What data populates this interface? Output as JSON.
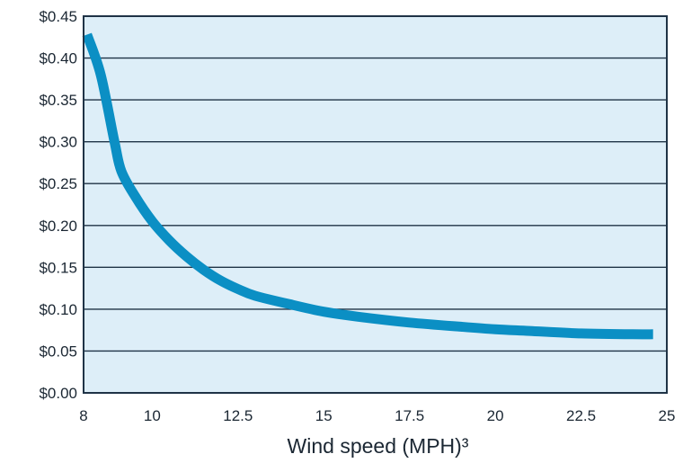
{
  "chart_data": {
    "type": "line",
    "title": "",
    "xlabel": "Wind speed (MPH)³",
    "ylabel": "",
    "xlim": [
      8,
      25
    ],
    "ylim": [
      0,
      0.45
    ],
    "x_ticks": [
      8,
      10,
      12.5,
      15,
      17.5,
      20,
      22.5,
      25
    ],
    "x_tick_labels": [
      "8",
      "10",
      "12.5",
      "15",
      "17.5",
      "20",
      "22.5",
      "25"
    ],
    "y_ticks": [
      0,
      0.05,
      0.1,
      0.15,
      0.2,
      0.25,
      0.3,
      0.35,
      0.4,
      0.45
    ],
    "y_tick_labels": [
      "$0.00",
      "$0.05",
      "$0.10",
      "$0.15",
      "$0.20",
      "$0.25",
      "$0.30",
      "$0.35",
      "$0.40",
      "$0.45"
    ],
    "grid": "horizontal",
    "legend": "none",
    "series": [
      {
        "color": "#0b8fc4",
        "points": [
          [
            8.1,
            0.428
          ],
          [
            8.5,
            0.38
          ],
          [
            8.9,
            0.3
          ],
          [
            9.1,
            0.265
          ],
          [
            9.5,
            0.235
          ],
          [
            10.0,
            0.205
          ],
          [
            10.5,
            0.182
          ],
          [
            11.0,
            0.163
          ],
          [
            11.5,
            0.147
          ],
          [
            12.0,
            0.134
          ],
          [
            12.5,
            0.124
          ],
          [
            13.0,
            0.116
          ],
          [
            14.0,
            0.106
          ],
          [
            15.0,
            0.097
          ],
          [
            16.0,
            0.091
          ],
          [
            17.5,
            0.084
          ],
          [
            19.0,
            0.079
          ],
          [
            20.0,
            0.076
          ],
          [
            21.0,
            0.074
          ],
          [
            22.5,
            0.071
          ],
          [
            24.0,
            0.07
          ],
          [
            24.6,
            0.07
          ]
        ]
      }
    ]
  },
  "colors": {
    "plot_background": "#ddeef8",
    "frame": "#1f3346",
    "line": "#0b8fc4"
  }
}
